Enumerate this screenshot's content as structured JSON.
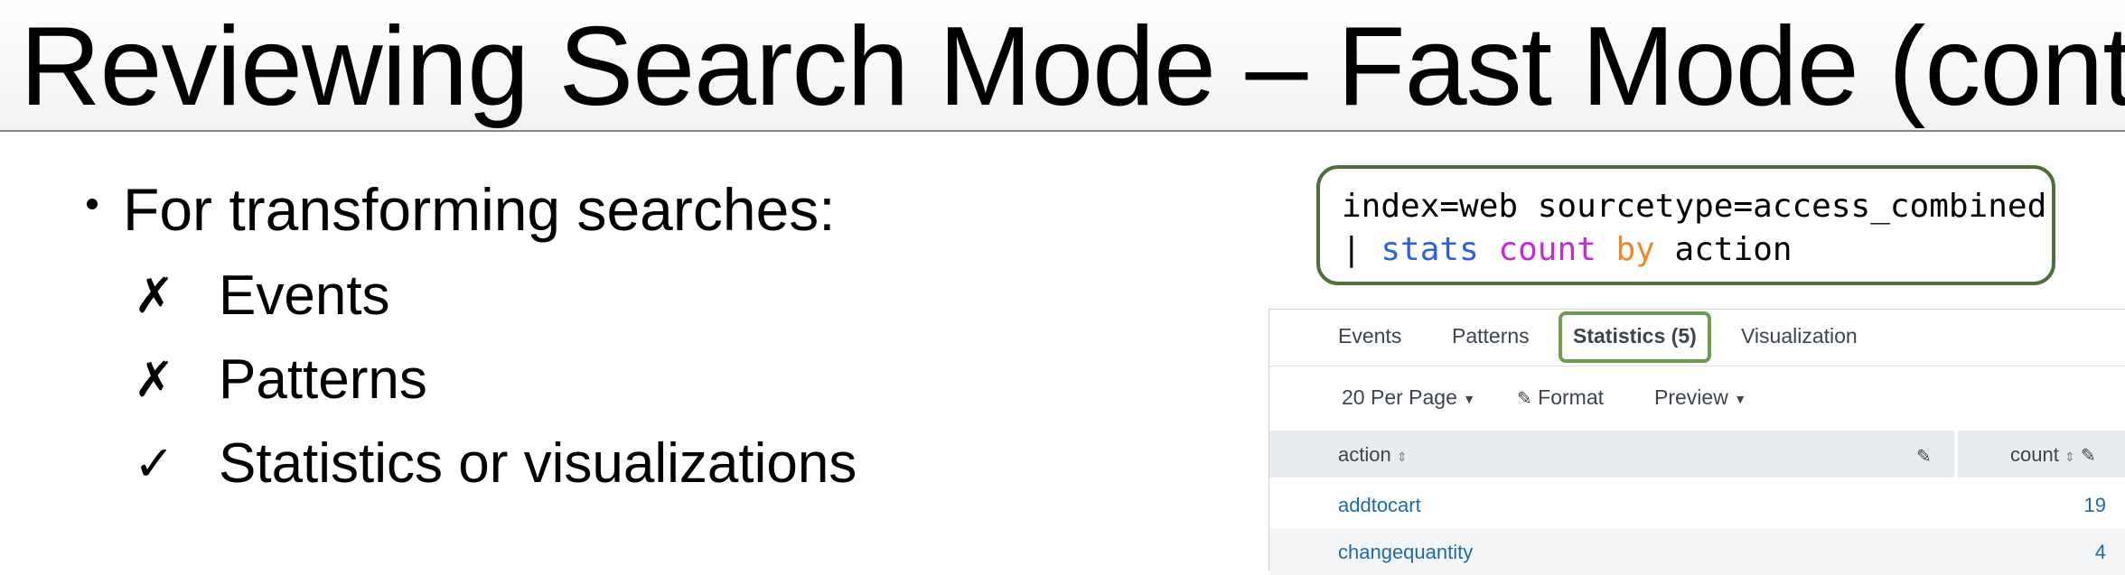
{
  "slide": {
    "title": "Reviewing Search Mode – Fast Mode (cont.)",
    "bullet": "For transforming searches:",
    "sub_items": [
      {
        "mark": "✗",
        "text": "Events"
      },
      {
        "mark": "✗",
        "text": "Patterns"
      },
      {
        "mark": "✓",
        "text": "Statistics or visualizations"
      }
    ]
  },
  "search": {
    "line1": "index=web sourcetype=access_combined",
    "pipe": "|",
    "cmd": "stats",
    "func": "count",
    "by": "by",
    "field": "action",
    "colors": {
      "cmd": "#2f5ee0",
      "func": "#c22bd6",
      "by": "#e8892c",
      "border": "#4e6e3a"
    }
  },
  "results": {
    "tabs": [
      "Events",
      "Patterns",
      "Statistics (5)",
      "Visualization"
    ],
    "active_tab": "Statistics (5)",
    "toolbar": {
      "per_page": "20 Per Page",
      "format": "Format",
      "preview": "Preview"
    },
    "columns": [
      "action",
      "count"
    ],
    "rows": [
      {
        "action": "addtocart",
        "count": "19"
      },
      {
        "action": "changequantity",
        "count": "4"
      }
    ]
  },
  "icons": [
    "caret-down-icon",
    "pencil-icon",
    "sort-icon",
    "bullet-dot-icon",
    "x-mark-icon",
    "check-mark-icon"
  ]
}
